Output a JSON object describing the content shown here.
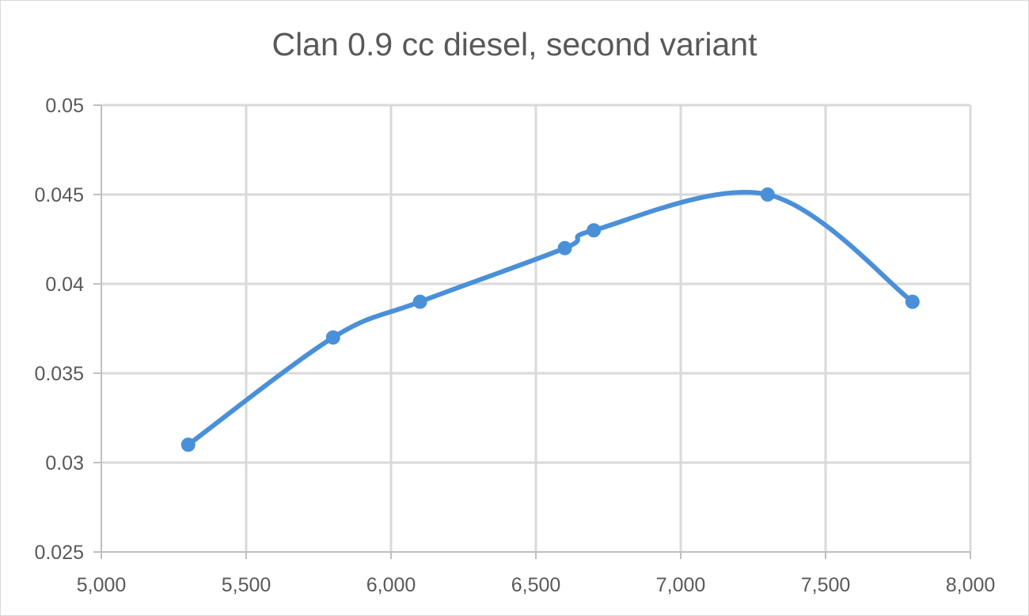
{
  "chart_data": {
    "type": "line",
    "title": "Clan 0.9 cc diesel, second variant",
    "xlabel": "",
    "ylabel": "",
    "xlim": [
      5000,
      8000
    ],
    "ylim": [
      0.025,
      0.05
    ],
    "x_ticks": [
      "5,000",
      "5,500",
      "6,000",
      "6,500",
      "7,000",
      "7,500",
      "8,000"
    ],
    "y_ticks": [
      "0.025",
      "0.03",
      "0.035",
      "0.04",
      "0.045",
      "0.05"
    ],
    "x_tick_values": [
      5000,
      5500,
      6000,
      6500,
      7000,
      7500,
      8000
    ],
    "y_tick_values": [
      0.025,
      0.03,
      0.035,
      0.04,
      0.045,
      0.05
    ],
    "grid": true,
    "smooth": true,
    "series": [
      {
        "color": "#4a90d9",
        "marker": "circle",
        "points": [
          {
            "x": 5300,
            "y": 0.031
          },
          {
            "x": 5800,
            "y": 0.037
          },
          {
            "x": 6100,
            "y": 0.039
          },
          {
            "x": 6600,
            "y": 0.042
          },
          {
            "x": 6700,
            "y": 0.043
          },
          {
            "x": 7300,
            "y": 0.045
          },
          {
            "x": 7800,
            "y": 0.039
          }
        ]
      }
    ],
    "colors": {
      "grid": "#d9d9d9",
      "axis": "#bfbfbf",
      "text": "#595959",
      "series": "#4a90d9"
    }
  }
}
